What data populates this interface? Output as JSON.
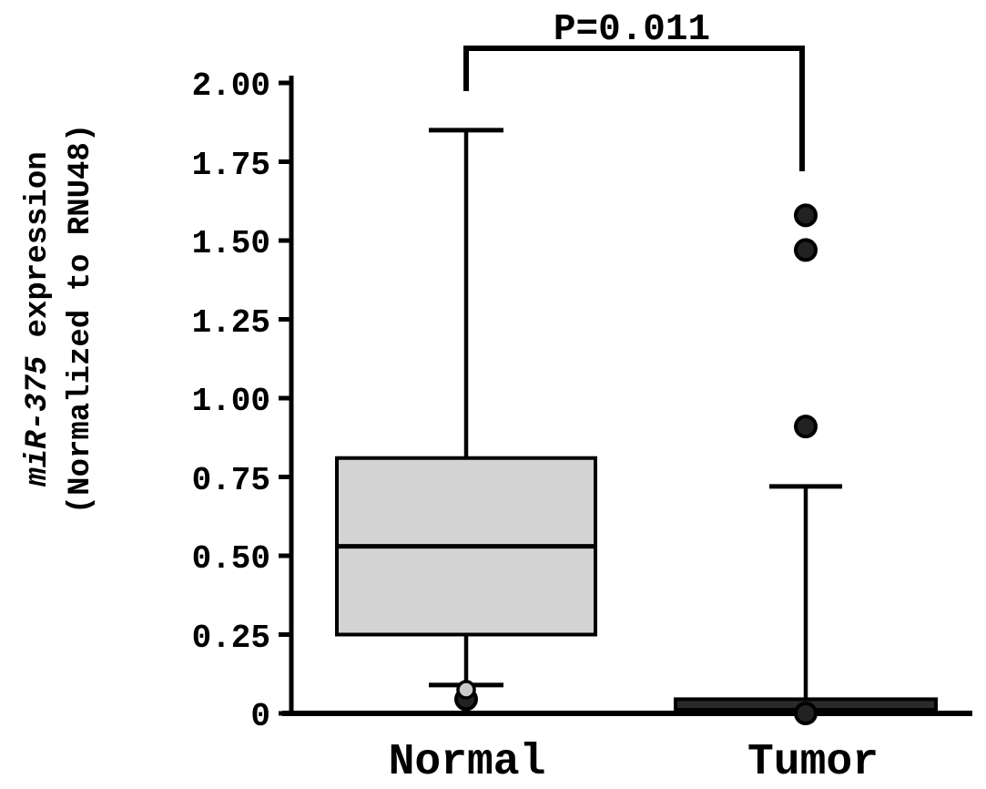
{
  "figure": {
    "background": "#ffffff"
  },
  "chart_data": {
    "type": "box",
    "title": "",
    "ylabel": {
      "line1_italic": "miR-375",
      "line1_rest": " expression",
      "line2": "(Normalized to RNU48)"
    },
    "xlabel": "",
    "ylim": [
      0,
      2.0
    ],
    "grid": false,
    "legend": null,
    "yticks": [
      0,
      0.25,
      0.5,
      0.75,
      1.0,
      1.25,
      1.5,
      1.75,
      2.0
    ],
    "ytick_labels_top_down": [
      "2.00",
      "1.75",
      "1.50",
      "1.25",
      "1.00",
      "0.75",
      "0.50",
      "0.25",
      "0"
    ],
    "categories": [
      "Normal",
      "Tumor"
    ],
    "groups": [
      {
        "name": "Normal",
        "box_fill": "#d3d3d3",
        "whisker_low": 0.09,
        "q1": 0.25,
        "median": 0.53,
        "q3": 0.81,
        "whisker_high": 1.85,
        "outliers": [
          {
            "value": 0.045,
            "style": "dark"
          },
          {
            "value": 0.075,
            "style": "light"
          }
        ]
      },
      {
        "name": "Tumor",
        "box_fill": "#2a2a2a",
        "whisker_low": 0.0,
        "q1": 0.0,
        "median": 0.01,
        "q3": 0.045,
        "whisker_high": 0.72,
        "outliers": [
          {
            "value": 1.58,
            "style": "dark"
          },
          {
            "value": 1.47,
            "style": "dark"
          },
          {
            "value": 0.91,
            "style": "dark"
          },
          {
            "value": 0.0,
            "style": "dark"
          }
        ]
      }
    ],
    "annotation": {
      "text": "P=0.011",
      "between": [
        "Normal",
        "Tumor"
      ]
    },
    "colors": {
      "line": "#000000",
      "outlier_dark": "#222222",
      "outlier_light": "#c9c9c9"
    }
  }
}
